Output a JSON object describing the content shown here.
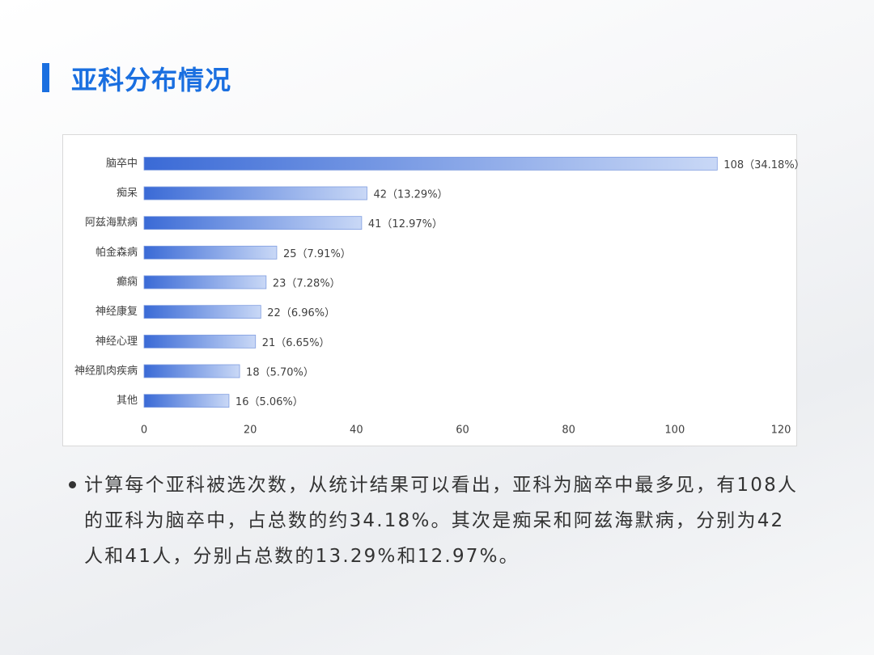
{
  "title": "亚科分布情况",
  "chart_data": {
    "type": "bar",
    "orientation": "horizontal",
    "color": "#3a6ad6",
    "categories": [
      "脑卒中",
      "痴呆",
      "阿兹海默病",
      "帕金森病",
      "癫痫",
      "神经康复",
      "神经心理",
      "神经肌肉疾病",
      "其他"
    ],
    "values": [
      108,
      42,
      41,
      25,
      23,
      22,
      21,
      18,
      16
    ],
    "value_labels": [
      "108（34.18%）",
      "42（13.29%）",
      "41（12.97%）",
      "25（7.91%）",
      "23（7.28%）",
      "22（6.96%）",
      "21（6.65%）",
      "18（5.70%）",
      "16（5.06%）"
    ],
    "xlim": [
      0,
      120
    ],
    "xticks": [
      0,
      20,
      40,
      60,
      80,
      100,
      120
    ],
    "grid": false
  },
  "bullet": "计算每个亚科被选次数，从统计结果可以看出，亚科为脑卒中最多见，有108人的亚科为脑卒中，占总数的约34.18%。其次是痴呆和阿兹海默病，分别为42人和41人，分别占总数的13.29%和12.97%。"
}
